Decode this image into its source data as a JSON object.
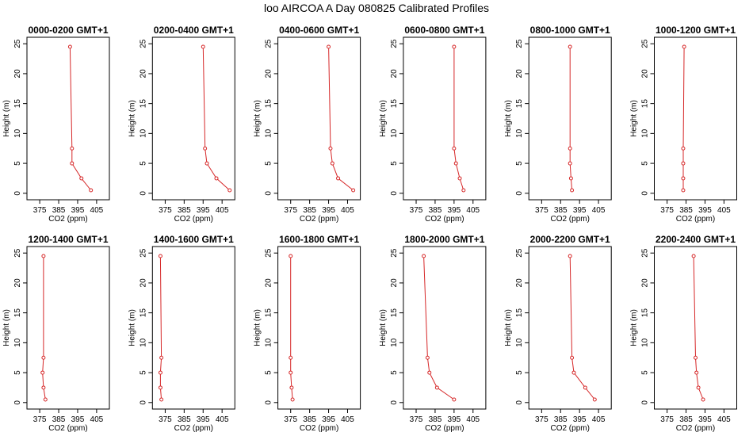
{
  "figure": {
    "title": "loo AIRCOA A  Day 080825  Calibrated Profiles"
  },
  "chart_data": [
    {
      "type": "line",
      "title": "0000-0200 GMT+1",
      "xlabel": "CO2 (ppm)",
      "ylabel": "Height (m)",
      "xlim": [
        370,
        410
      ],
      "ylim": [
        0,
        25
      ],
      "xticks": [
        375,
        385,
        395,
        405
      ],
      "yticks": [
        0,
        5,
        10,
        15,
        20,
        25
      ],
      "grid": false,
      "color": "#d62728",
      "x": [
        402,
        397,
        392,
        392,
        391
      ],
      "y": [
        0.5,
        2.5,
        5,
        7.5,
        24.5
      ]
    },
    {
      "type": "line",
      "title": "0200-0400 GMT+1",
      "xlabel": "CO2 (ppm)",
      "ylabel": "Height (m)",
      "xlim": [
        370,
        410
      ],
      "ylim": [
        0,
        25
      ],
      "xticks": [
        375,
        385,
        395,
        405
      ],
      "yticks": [
        0,
        5,
        10,
        15,
        20,
        25
      ],
      "grid": false,
      "color": "#d62728",
      "x": [
        409,
        402,
        397,
        396,
        395
      ],
      "y": [
        0.5,
        2.5,
        5,
        7.5,
        24.5
      ]
    },
    {
      "type": "line",
      "title": "0400-0600 GMT+1",
      "xlabel": "CO2 (ppm)",
      "ylabel": "Height (m)",
      "xlim": [
        370,
        410
      ],
      "ylim": [
        0,
        25
      ],
      "xticks": [
        375,
        385,
        395,
        405
      ],
      "yticks": [
        0,
        5,
        10,
        15,
        20,
        25
      ],
      "grid": false,
      "color": "#d62728",
      "x": [
        408,
        400,
        397,
        396,
        395
      ],
      "y": [
        0.5,
        2.5,
        5,
        7.5,
        24.5
      ]
    },
    {
      "type": "line",
      "title": "0600-0800 GMT+1",
      "xlabel": "CO2 (ppm)",
      "ylabel": "Height (m)",
      "xlim": [
        370,
        410
      ],
      "ylim": [
        0,
        25
      ],
      "xticks": [
        375,
        385,
        395,
        405
      ],
      "yticks": [
        0,
        5,
        10,
        15,
        20,
        25
      ],
      "grid": false,
      "color": "#d62728",
      "x": [
        400,
        398,
        396,
        395,
        395
      ],
      "y": [
        0.5,
        2.5,
        5,
        7.5,
        24.5
      ]
    },
    {
      "type": "line",
      "title": "0800-1000 GMT+1",
      "xlabel": "CO2 (ppm)",
      "ylabel": "Height (m)",
      "xlim": [
        370,
        410
      ],
      "ylim": [
        0,
        25
      ],
      "xticks": [
        375,
        385,
        395,
        405
      ],
      "yticks": [
        0,
        5,
        10,
        15,
        20,
        25
      ],
      "grid": false,
      "color": "#d62728",
      "x": [
        391,
        390.5,
        390,
        390,
        390
      ],
      "y": [
        0.5,
        2.5,
        5,
        7.5,
        24.5
      ]
    },
    {
      "type": "line",
      "title": "1000-1200 GMT+1",
      "xlabel": "CO2 (ppm)",
      "ylabel": "Height (m)",
      "xlim": [
        370,
        410
      ],
      "ylim": [
        0,
        25
      ],
      "xticks": [
        375,
        385,
        395,
        405
      ],
      "yticks": [
        0,
        5,
        10,
        15,
        20,
        25
      ],
      "grid": false,
      "color": "#d62728",
      "x": [
        383.5,
        383.5,
        383.5,
        383.5,
        384
      ],
      "y": [
        0.5,
        2.5,
        5,
        7.5,
        24.5
      ]
    },
    {
      "type": "line",
      "title": "1200-1400 GMT+1",
      "xlabel": "CO2 (ppm)",
      "ylabel": "Height (m)",
      "xlim": [
        370,
        410
      ],
      "ylim": [
        0,
        25
      ],
      "xticks": [
        375,
        385,
        395,
        405
      ],
      "yticks": [
        0,
        5,
        10,
        15,
        20,
        25
      ],
      "grid": false,
      "color": "#d62728",
      "x": [
        378,
        377,
        376.5,
        377,
        377
      ],
      "y": [
        0.5,
        2.5,
        5,
        7.5,
        24.5
      ]
    },
    {
      "type": "line",
      "title": "1400-1600 GMT+1",
      "xlabel": "CO2 (ppm)",
      "ylabel": "Height (m)",
      "xlim": [
        370,
        410
      ],
      "ylim": [
        0,
        25
      ],
      "xticks": [
        375,
        385,
        395,
        405
      ],
      "yticks": [
        0,
        5,
        10,
        15,
        20,
        25
      ],
      "grid": false,
      "color": "#d62728",
      "x": [
        373,
        372.5,
        372.5,
        373,
        372.5
      ],
      "y": [
        0.5,
        2.5,
        5,
        7.5,
        24.5
      ]
    },
    {
      "type": "line",
      "title": "1600-1800 GMT+1",
      "xlabel": "CO2 (ppm)",
      "ylabel": "Height (m)",
      "xlim": [
        370,
        410
      ],
      "ylim": [
        0,
        25
      ],
      "xticks": [
        375,
        385,
        395,
        405
      ],
      "yticks": [
        0,
        5,
        10,
        15,
        20,
        25
      ],
      "grid": false,
      "color": "#d62728",
      "x": [
        376,
        375.5,
        375,
        375,
        375
      ],
      "y": [
        0.5,
        2.5,
        5,
        7.5,
        24.5
      ]
    },
    {
      "type": "line",
      "title": "1800-2000 GMT+1",
      "xlabel": "CO2 (ppm)",
      "ylabel": "Height (m)",
      "xlim": [
        370,
        410
      ],
      "ylim": [
        0,
        25
      ],
      "xticks": [
        375,
        385,
        395,
        405
      ],
      "yticks": [
        0,
        5,
        10,
        15,
        20,
        25
      ],
      "grid": false,
      "color": "#d62728",
      "x": [
        395,
        386,
        382,
        381,
        379
      ],
      "y": [
        0.5,
        2.5,
        5,
        7.5,
        24.5
      ]
    },
    {
      "type": "line",
      "title": "2000-2200 GMT+1",
      "xlabel": "CO2 (ppm)",
      "ylabel": "Height (m)",
      "xlim": [
        370,
        410
      ],
      "ylim": [
        0,
        25
      ],
      "xticks": [
        375,
        385,
        395,
        405
      ],
      "yticks": [
        0,
        5,
        10,
        15,
        20,
        25
      ],
      "grid": false,
      "color": "#d62728",
      "x": [
        403,
        398,
        392,
        391,
        390
      ],
      "y": [
        0.5,
        2.5,
        5,
        7.5,
        24.5
      ]
    },
    {
      "type": "line",
      "title": "2200-2400 GMT+1",
      "xlabel": "CO2 (ppm)",
      "ylabel": "Height (m)",
      "xlim": [
        370,
        410
      ],
      "ylim": [
        0,
        25
      ],
      "xticks": [
        375,
        385,
        395,
        405
      ],
      "yticks": [
        0,
        5,
        10,
        15,
        20,
        25
      ],
      "grid": false,
      "color": "#d62728",
      "x": [
        394,
        391.5,
        390.5,
        390,
        389
      ],
      "y": [
        0.5,
        2.5,
        5,
        7.5,
        24.5
      ]
    }
  ]
}
